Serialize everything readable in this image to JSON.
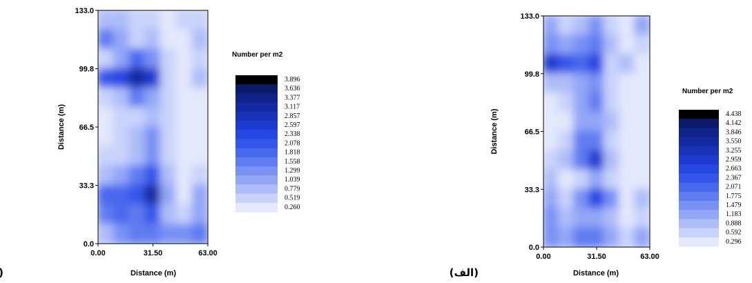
{
  "chart_data": [
    {
      "type": "heatmap",
      "panel_label": "(ب)",
      "title": "",
      "xlabel": "Distance (m)",
      "ylabel": "Distance (m)",
      "x_ticks": [
        "0.00",
        "31.50",
        "63.00"
      ],
      "y_ticks": [
        "0.0",
        "33.3",
        "66.5",
        "99.8",
        "133.0"
      ],
      "xlim": [
        0,
        63
      ],
      "ylim": [
        0,
        133
      ],
      "legend_title": "Number per m2",
      "legend_levels": [
        "3.896",
        "3.636",
        "3.377",
        "3.117",
        "2.857",
        "2.597",
        "2.338",
        "2.078",
        "1.818",
        "1.558",
        "1.299",
        "1.039",
        "0.779",
        "0.519",
        "0.260"
      ],
      "grid": [
        [
          0.9,
          0.8,
          0.6,
          0.5,
          0.3,
          0.5,
          0.4
        ],
        [
          1.6,
          1.1,
          0.6,
          0.9,
          0.3,
          0.3,
          0.9
        ],
        [
          0.6,
          1.0,
          1.7,
          1.3,
          0.4,
          0.3,
          0.4
        ],
        [
          2.1,
          2.3,
          3.1,
          2.5,
          0.6,
          0.3,
          0.8
        ],
        [
          0.4,
          0.9,
          1.6,
          1.0,
          0.4,
          0.3,
          0.3
        ],
        [
          0.3,
          0.4,
          0.6,
          0.8,
          0.4,
          0.3,
          0.3
        ],
        [
          0.3,
          0.4,
          0.7,
          1.3,
          0.5,
          0.3,
          0.3
        ],
        [
          0.6,
          0.4,
          0.7,
          1.4,
          0.4,
          0.3,
          0.3
        ],
        [
          0.9,
          1.1,
          1.6,
          2.2,
          0.8,
          0.3,
          0.6
        ],
        [
          1.7,
          1.9,
          2.0,
          3.0,
          1.0,
          0.3,
          1.1
        ],
        [
          1.5,
          1.8,
          1.6,
          2.0,
          0.8,
          0.6,
          1.1
        ],
        [
          0.7,
          1.2,
          1.6,
          1.5,
          1.2,
          1.4,
          1.6
        ]
      ]
    },
    {
      "type": "heatmap",
      "panel_label": "(الف)",
      "title": "",
      "xlabel": "Distance (m)",
      "ylabel": "Distance (m)",
      "x_ticks": [
        "0.00",
        "31.50",
        "63.00"
      ],
      "y_ticks": [
        "0.0",
        "33.3",
        "66.5",
        "99.8",
        "133.0"
      ],
      "xlim": [
        0,
        63
      ],
      "ylim": [
        0,
        133
      ],
      "legend_title": "Number per m2",
      "legend_levels": [
        "4.438",
        "4.142",
        "3.846",
        "3.550",
        "3.255",
        "2.959",
        "2.663",
        "2.367",
        "2.071",
        "1.775",
        "1.479",
        "1.183",
        "0.888",
        "0.592",
        "0.296"
      ],
      "grid": [
        [
          1.1,
          0.6,
          0.9,
          1.6,
          0.6,
          0.4,
          1.2
        ],
        [
          1.6,
          1.1,
          1.4,
          1.9,
          0.9,
          0.4,
          0.6
        ],
        [
          2.9,
          2.4,
          2.2,
          2.6,
          0.7,
          0.9,
          0.4
        ],
        [
          0.9,
          0.9,
          1.2,
          1.4,
          0.5,
          0.3,
          0.3
        ],
        [
          0.4,
          0.6,
          1.1,
          1.8,
          0.6,
          0.3,
          0.4
        ],
        [
          0.3,
          0.4,
          1.1,
          1.2,
          0.9,
          0.3,
          0.3
        ],
        [
          0.4,
          0.6,
          1.9,
          1.8,
          0.5,
          0.3,
          0.3
        ],
        [
          0.6,
          0.9,
          1.8,
          3.1,
          0.8,
          0.3,
          0.3
        ],
        [
          0.9,
          0.4,
          0.5,
          1.2,
          0.6,
          0.3,
          0.4
        ],
        [
          1.2,
          0.6,
          1.4,
          2.6,
          1.6,
          0.4,
          0.9
        ],
        [
          1.4,
          0.9,
          1.1,
          1.3,
          0.9,
          0.4,
          0.6
        ],
        [
          1.6,
          1.1,
          1.8,
          1.9,
          1.1,
          0.5,
          1.2
        ]
      ]
    }
  ]
}
